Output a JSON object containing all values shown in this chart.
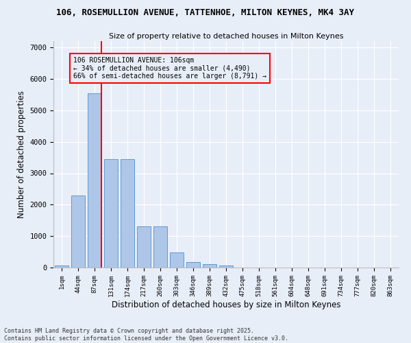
{
  "title_line1": "106, ROSEMULLION AVENUE, TATTENHOE, MILTON KEYNES, MK4 3AY",
  "title_line2": "Size of property relative to detached houses in Milton Keynes",
  "xlabel": "Distribution of detached houses by size in Milton Keynes",
  "ylabel": "Number of detached properties",
  "categories": [
    "1sqm",
    "44sqm",
    "87sqm",
    "131sqm",
    "174sqm",
    "217sqm",
    "260sqm",
    "303sqm",
    "346sqm",
    "389sqm",
    "432sqm",
    "475sqm",
    "518sqm",
    "561sqm",
    "604sqm",
    "648sqm",
    "691sqm",
    "734sqm",
    "777sqm",
    "820sqm",
    "863sqm"
  ],
  "values": [
    75,
    2300,
    5550,
    3450,
    3450,
    1310,
    1310,
    480,
    175,
    100,
    75,
    0,
    0,
    0,
    0,
    0,
    0,
    0,
    0,
    0,
    0
  ],
  "bar_color": "#aec6e8",
  "bar_edge_color": "#5b9bd5",
  "ref_line_bin": 2,
  "ref_line_color": "red",
  "annotation_title": "106 ROSEMULLION AVENUE: 106sqm",
  "annotation_line2": "← 34% of detached houses are smaller (4,490)",
  "annotation_line3": "66% of semi-detached houses are larger (8,791) →",
  "annotation_box_color": "red",
  "ylim": [
    0,
    7200
  ],
  "yticks": [
    0,
    1000,
    2000,
    3000,
    4000,
    5000,
    6000,
    7000
  ],
  "bg_color": "#e8eef8",
  "grid_color": "#ffffff",
  "footer_line1": "Contains HM Land Registry data © Crown copyright and database right 2025.",
  "footer_line2": "Contains public sector information licensed under the Open Government Licence v3.0."
}
